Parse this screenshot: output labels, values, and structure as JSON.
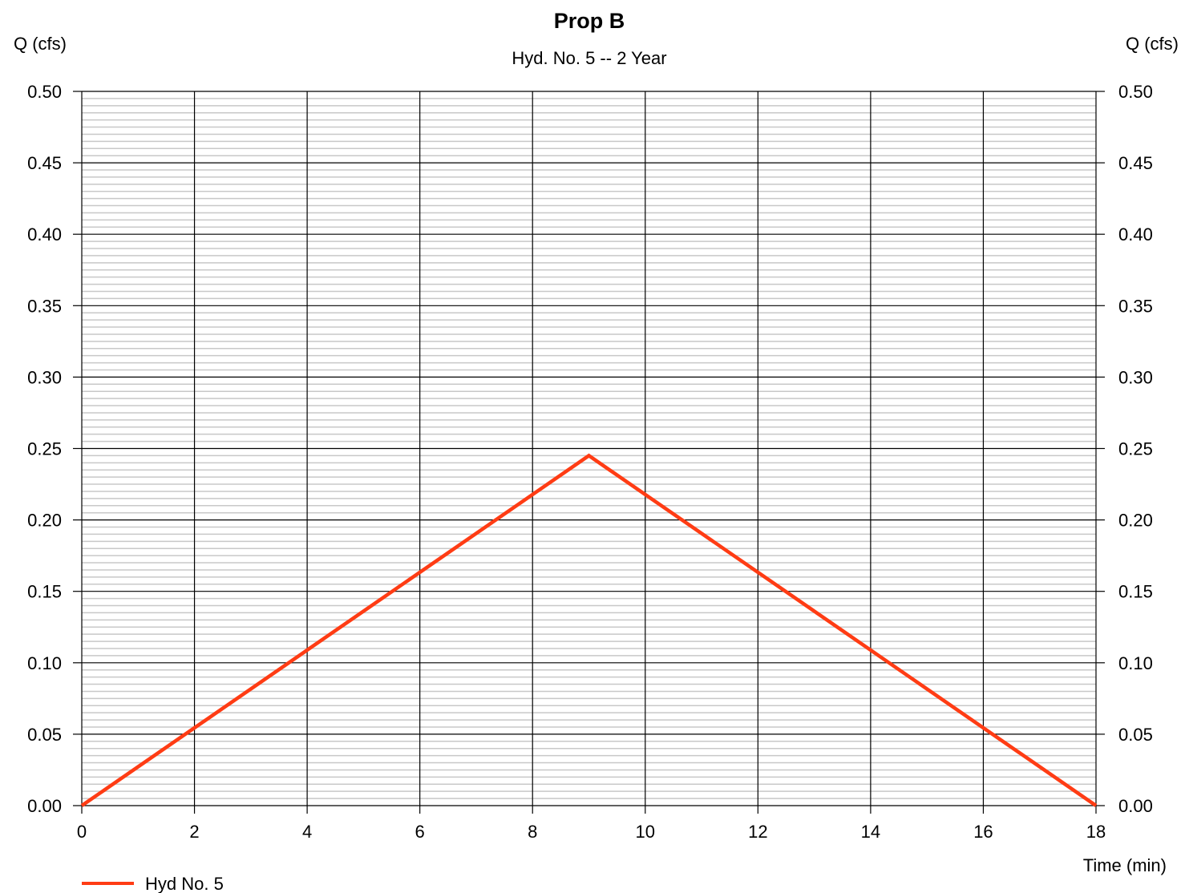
{
  "chart_data": {
    "type": "line",
    "title": "Prop B",
    "subtitle": "Hyd. No. 5 -- 2 Year",
    "ylabel_left": "Q (cfs)",
    "ylabel_right": "Q (cfs)",
    "xlabel": "Time (min)",
    "xlim": [
      0,
      18
    ],
    "ylim": [
      0,
      0.5
    ],
    "x_ticks": [
      "0",
      "2",
      "4",
      "6",
      "8",
      "10",
      "12",
      "14",
      "16",
      "18"
    ],
    "y_ticks": [
      "0.00",
      "0.05",
      "0.10",
      "0.15",
      "0.20",
      "0.25",
      "0.30",
      "0.35",
      "0.40",
      "0.45",
      "0.50"
    ],
    "grid": true,
    "legend_position": "bottom-left",
    "series": [
      {
        "name": "Hyd No. 5",
        "color": "#ff3c14",
        "x": [
          0,
          9,
          18
        ],
        "y": [
          0.0,
          0.245,
          0.0
        ]
      }
    ]
  }
}
